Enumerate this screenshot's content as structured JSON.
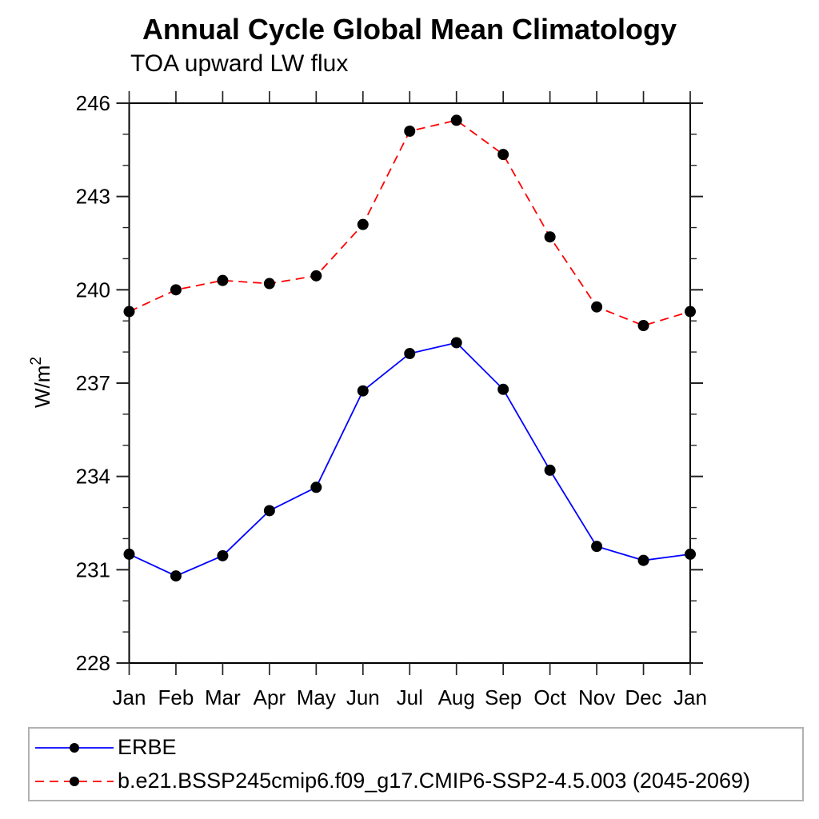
{
  "chart_data": {
    "type": "line",
    "title": "Annual Cycle Global Mean Climatology",
    "subtitle": "TOA upward LW flux",
    "ylabel_base": "W/m",
    "ylabel_exponent": "2",
    "categories": [
      "Jan",
      "Feb",
      "Mar",
      "Apr",
      "May",
      "Jun",
      "Jul",
      "Aug",
      "Sep",
      "Oct",
      "Nov",
      "Dec",
      "Jan"
    ],
    "ylim": [
      228,
      246
    ],
    "ytick_major": [
      228,
      231,
      234,
      237,
      240,
      243,
      246
    ],
    "ytick_minor_step": 1,
    "grid": false,
    "legend_position": "bottom",
    "marker": {
      "shape": "circle",
      "color": "#000000",
      "radius": 7
    },
    "series": [
      {
        "name": "ERBE",
        "color": "#0000ff",
        "line_style": "solid",
        "values": [
          231.5,
          230.8,
          231.45,
          232.9,
          233.65,
          236.75,
          237.95,
          238.3,
          236.8,
          234.2,
          231.75,
          231.3,
          231.5
        ]
      },
      {
        "name": "b.e21.BSSP245cmip6.f09_g17.CMIP6-SSP2-4.5.003 (2045-2069)",
        "color": "#ff0000",
        "line_style": "dashed",
        "values": [
          239.3,
          240.0,
          240.3,
          240.2,
          240.45,
          242.1,
          245.1,
          245.45,
          244.35,
          241.7,
          239.45,
          238.85,
          239.3
        ]
      }
    ]
  }
}
